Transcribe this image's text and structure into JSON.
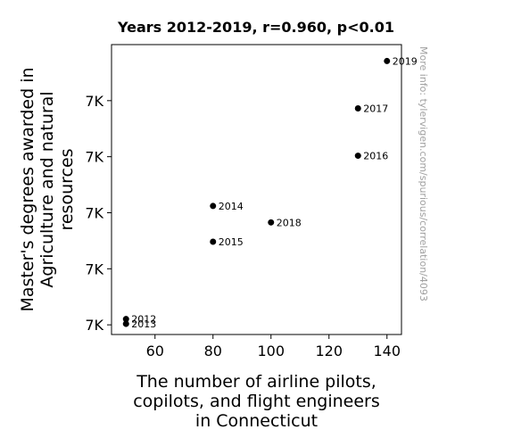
{
  "chart_data": {
    "type": "scatter",
    "title": "Years 2012-2019, r=0.960, p<0.01",
    "xlabel": [
      "The number of airline pilots,",
      "copilots, and flight engineers",
      "in Connecticut"
    ],
    "ylabel": [
      "Master's degrees awarded in",
      "Agriculture and natural",
      "resources"
    ],
    "watermark": "More info: tylervigen.com/spurious/correlation/4093",
    "xlim": [
      45,
      145
    ],
    "ylim": [
      6740,
      7040
    ],
    "x_ticks": [
      60,
      80,
      100,
      120,
      140
    ],
    "y_ticks": [
      6750,
      6808,
      6866,
      6924,
      6982
    ],
    "y_tick_labels": [
      "7K",
      "7K",
      "7K",
      "7K",
      "7K"
    ],
    "grid": false,
    "point_color": "#000000",
    "points": [
      {
        "label": "2012",
        "x": 50,
        "y": 6756
      },
      {
        "label": "2013",
        "x": 50,
        "y": 6751
      },
      {
        "label": "2014",
        "x": 80,
        "y": 6873
      },
      {
        "label": "2015",
        "x": 80,
        "y": 6836
      },
      {
        "label": "2016",
        "x": 130,
        "y": 6925
      },
      {
        "label": "2017",
        "x": 130,
        "y": 6974
      },
      {
        "label": "2018",
        "x": 100,
        "y": 6856
      },
      {
        "label": "2019",
        "x": 140,
        "y": 7023
      }
    ]
  }
}
